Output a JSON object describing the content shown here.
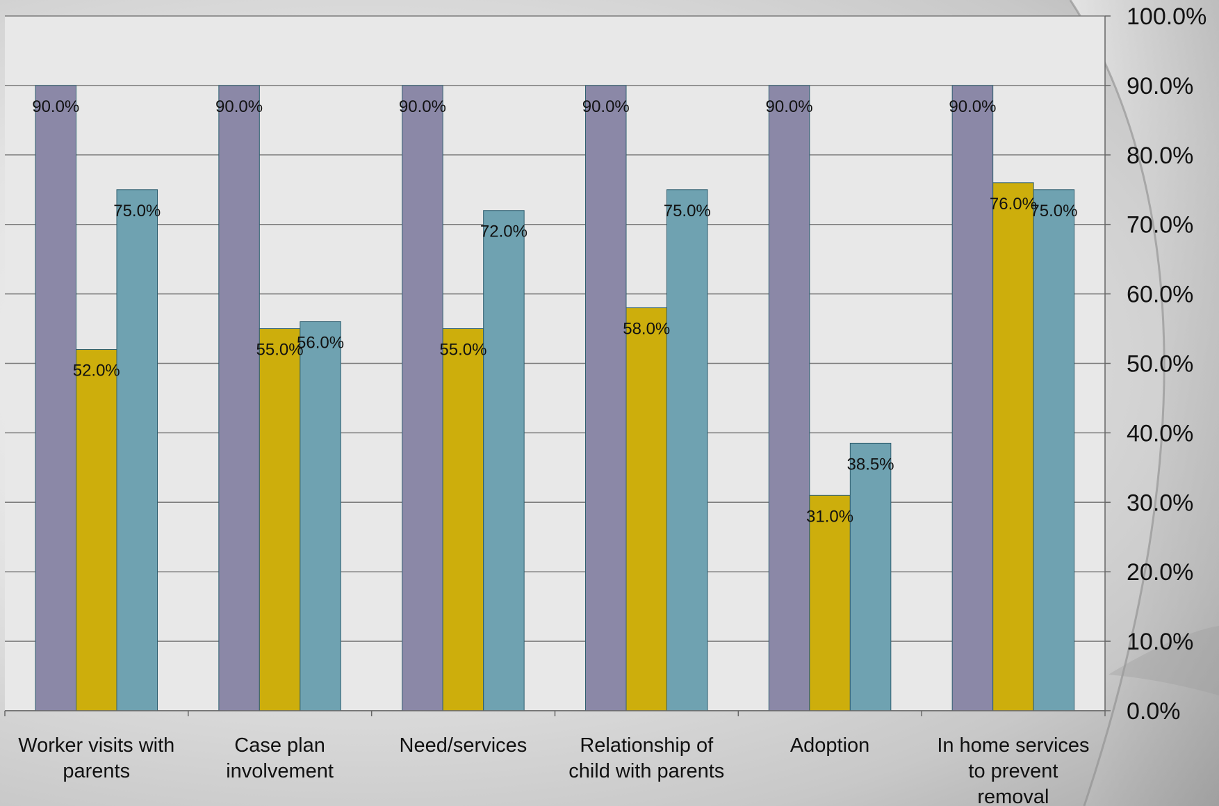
{
  "chart_data": {
    "type": "bar",
    "categories": [
      [
        "Worker visits with",
        "parents"
      ],
      [
        "Case plan",
        "involvement"
      ],
      [
        "Need/services"
      ],
      [
        "Relationship of",
        "child with parents"
      ],
      [
        "Adoption"
      ],
      [
        "In home services",
        "to prevent",
        "removal"
      ]
    ],
    "series": [
      {
        "values": [
          90.0,
          90.0,
          90.0,
          90.0,
          90.0,
          90.0
        ],
        "labels": [
          "90.0%",
          "90.0%",
          "90.0%",
          "90.0%",
          "90.0%",
          "90.0%"
        ],
        "color": "#8b88a7"
      },
      {
        "values": [
          52.0,
          55.0,
          55.0,
          58.0,
          31.0,
          76.0
        ],
        "labels": [
          "52.0%",
          "55.0%",
          "55.0%",
          "58.0%",
          "31.0%",
          "76.0%"
        ],
        "color": "#cdae0c"
      },
      {
        "values": [
          75.0,
          56.0,
          72.0,
          75.0,
          38.5,
          75.0
        ],
        "labels": [
          "75.0%",
          "56.0%",
          "72.0%",
          "75.0%",
          "38.5%",
          "75.0%"
        ],
        "color": "#6fa2b1"
      }
    ],
    "y_ticks": [
      "0.0%",
      "10.0%",
      "20.0%",
      "30.0%",
      "40.0%",
      "50.0%",
      "60.0%",
      "70.0%",
      "80.0%",
      "90.0%",
      "100.0%"
    ],
    "ylim": [
      0,
      100
    ],
    "y_axis_side": "right",
    "grid": true,
    "legend": "none",
    "plot_background": "#e8e8e8",
    "gridline_color": "#7a7a7a"
  }
}
